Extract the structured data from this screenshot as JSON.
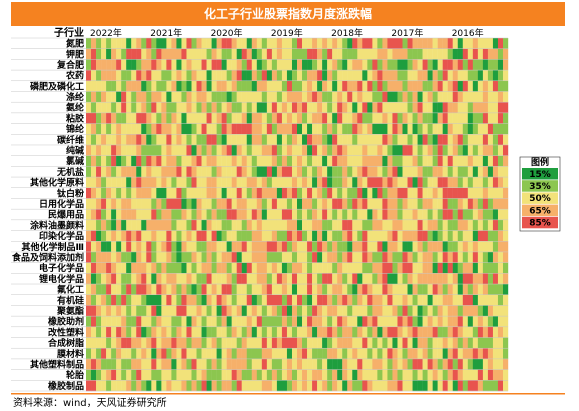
{
  "title": "化工子行业股票指数月度涨跌幅",
  "header_label": "子行业",
  "source": "资料来源：wind，天风证券研究所",
  "legend": {
    "title": "图例",
    "items": [
      {
        "label": "15%",
        "color": "#1e9e3e"
      },
      {
        "label": "35%",
        "color": "#8cc64f"
      },
      {
        "label": "50%",
        "color": "#f2e27a"
      },
      {
        "label": "65%",
        "color": "#f6b06a"
      },
      {
        "label": "85%",
        "color": "#e8544e"
      }
    ]
  },
  "colors": {
    "title_bg": "#f58220",
    "source_bar": "#f58220",
    "grid": "#c8c8c8"
  },
  "chart_data": {
    "type": "heatmap",
    "x_direction": "newest-left",
    "months_shown": 84,
    "year_labels": [
      "2022年",
      "2021年",
      "2020年",
      "2019年",
      "2018年",
      "2017年",
      "2016年"
    ],
    "rows": [
      "氮肥",
      "钾肥",
      "复合肥",
      "农药",
      "磷肥及磷化工",
      "涤纶",
      "氨纶",
      "粘胶",
      "锦纶",
      "碳纤维",
      "纯碱",
      "氯碱",
      "无机盐",
      "其他化学原料",
      "钛白粉",
      "日用化学品",
      "民爆用品",
      "涂料油墨颜料",
      "印染化学品",
      "其他化学制品Ⅲ",
      "食品及饲料添加剂",
      "电子化学品",
      "锂电化学品",
      "氟化工",
      "有机硅",
      "聚氨酯",
      "橡胶助剂",
      "改性塑料",
      "合成树脂",
      "膜材料",
      "其他塑料制品",
      "轮胎",
      "橡胶制品"
    ],
    "value_note": "each cell = monthly return percentile class, one of 15/35/50/65/85; generated per row in script"
  }
}
